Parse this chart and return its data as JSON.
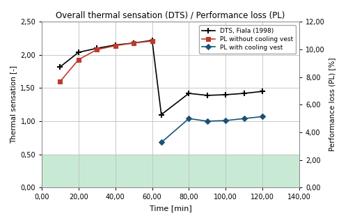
{
  "title": "Overall thermal sensation (DTS) / Performance loss (PL)",
  "xlabel": "Time [min]",
  "ylabel_left": "Thermal sensation [-]",
  "ylabel_right": "Performance loss (PL) [%]",
  "dts_x": [
    10,
    20,
    30,
    40,
    50,
    60,
    65,
    80,
    90,
    100,
    110,
    120
  ],
  "dts_y": [
    1.82,
    2.04,
    2.1,
    2.15,
    2.18,
    2.22,
    1.1,
    1.42,
    1.39,
    1.4,
    1.42,
    1.45
  ],
  "pl_no_vest_x": [
    10,
    20,
    30,
    40,
    50,
    60
  ],
  "pl_no_vest_y": [
    1.6,
    1.93,
    2.08,
    2.14,
    2.18,
    2.21
  ],
  "pl_vest_x": [
    65,
    80,
    90,
    100,
    110,
    120
  ],
  "pl_vest_y": [
    0.68,
    1.04,
    1.0,
    1.01,
    1.04,
    1.07
  ],
  "dts_color": "#000000",
  "pl_no_vest_color": "#c0392b",
  "pl_vest_color": "#1a5276",
  "ylim_left": [
    0.0,
    2.5
  ],
  "ylim_right": [
    0.0,
    12.0
  ],
  "xlim": [
    0,
    140
  ],
  "yticks_left": [
    0.0,
    0.5,
    1.0,
    1.5,
    2.0,
    2.5
  ],
  "yticks_right": [
    0.0,
    2.0,
    4.0,
    6.0,
    8.0,
    10.0,
    12.0
  ],
  "xticks": [
    0.0,
    20.0,
    40.0,
    60.0,
    80.0,
    100.0,
    120.0,
    140.0
  ],
  "green_fill_y_min": 0.0,
  "green_fill_y_max": 0.5,
  "green_fill_color": "#c8ead4",
  "background_color": "#ffffff",
  "legend_labels": [
    "DTS, Fiala (1998)",
    "PL without cooling vest",
    "PL with cooling vest"
  ]
}
